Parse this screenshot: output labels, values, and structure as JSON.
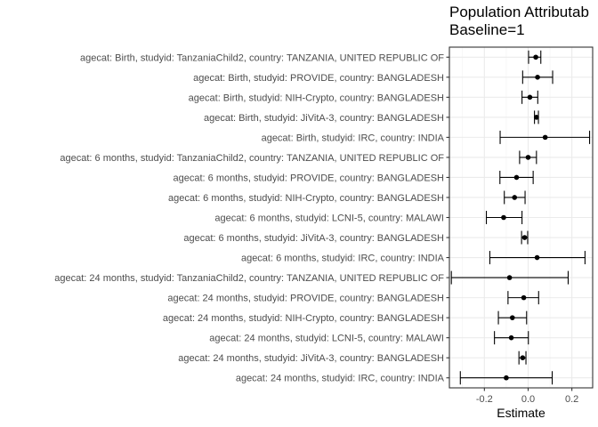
{
  "chart_data": {
    "type": "forest",
    "title_lines": [
      "Population Attributab",
      "Baseline=1"
    ],
    "xlabel": "Estimate",
    "ylabel": "",
    "xlim": [
      -0.36,
      0.295
    ],
    "x_ticks": [
      -0.2,
      0.0,
      0.2
    ],
    "x_tick_labels": [
      "-0.2",
      "0.0",
      "0.2"
    ],
    "grid": true,
    "rows": [
      {
        "label": "agecat: Birth, studyid: TanzaniaChild2, country: TANZANIA, UNITED REPUBLIC OF",
        "estimate": 0.035,
        "lower": 0.002,
        "upper": 0.058
      },
      {
        "label": "agecat: Birth, studyid: PROVIDE, country: BANGLADESH",
        "estimate": 0.043,
        "lower": -0.025,
        "upper": 0.112
      },
      {
        "label": "agecat: Birth, studyid: NIH-Crypto, country: BANGLADESH",
        "estimate": 0.008,
        "lower": -0.028,
        "upper": 0.044
      },
      {
        "label": "agecat: Birth, studyid: JiVitA-3, country: BANGLADESH",
        "estimate": 0.038,
        "lower": 0.029,
        "upper": 0.047
      },
      {
        "label": "agecat: Birth, studyid: IRC, country: INDIA",
        "estimate": 0.078,
        "lower": -0.128,
        "upper": 0.281
      },
      {
        "label": "agecat: 6 months, studyid: TanzaniaChild2, country: TANZANIA, UNITED REPUBLIC OF",
        "estimate": 0.0,
        "lower": -0.039,
        "upper": 0.038
      },
      {
        "label": "agecat: 6 months, studyid: PROVIDE, country: BANGLADESH",
        "estimate": -0.053,
        "lower": -0.129,
        "upper": 0.023
      },
      {
        "label": "agecat: 6 months, studyid: NIH-Crypto, country: BANGLADESH",
        "estimate": -0.062,
        "lower": -0.109,
        "upper": -0.014
      },
      {
        "label": "agecat: 6 months, studyid: LCNI-5, country: MALAWI",
        "estimate": -0.112,
        "lower": -0.191,
        "upper": -0.028
      },
      {
        "label": "agecat: 6 months, studyid: JiVitA-3, country: BANGLADESH",
        "estimate": -0.016,
        "lower": -0.03,
        "upper": -0.002
      },
      {
        "label": "agecat: 6 months, studyid: IRC, country: INDIA",
        "estimate": 0.041,
        "lower": -0.175,
        "upper": 0.26
      },
      {
        "label": "agecat: 24 months, studyid: TanzaniaChild2, country: TANZANIA, UNITED REPUBLIC OF",
        "estimate": -0.085,
        "lower": -0.351,
        "upper": 0.183
      },
      {
        "label": "agecat: 24 months, studyid: PROVIDE, country: BANGLADESH",
        "estimate": -0.02,
        "lower": -0.092,
        "upper": 0.048
      },
      {
        "label": "agecat: 24 months, studyid: NIH-Crypto, country: BANGLADESH",
        "estimate": -0.072,
        "lower": -0.136,
        "upper": -0.007
      },
      {
        "label": "agecat: 24 months, studyid: LCNI-5, country: MALAWI",
        "estimate": -0.077,
        "lower": -0.154,
        "upper": 0.001
      },
      {
        "label": "agecat: 24 months, studyid: JiVitA-3, country: BANGLADESH",
        "estimate": -0.025,
        "lower": -0.042,
        "upper": -0.01
      },
      {
        "label": "agecat: 24 months, studyid: IRC, country: INDIA",
        "estimate": -0.1,
        "lower": -0.31,
        "upper": 0.11
      }
    ]
  }
}
